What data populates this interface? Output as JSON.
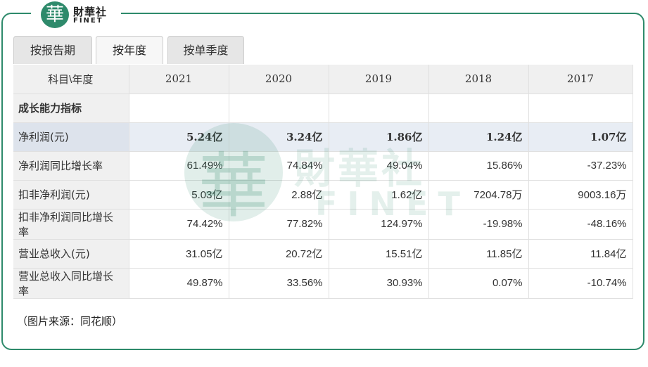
{
  "brand": {
    "mark": "華",
    "name_cn": "財華社",
    "name_en": "FINET"
  },
  "tabs": [
    {
      "label": "按报告期",
      "active": false
    },
    {
      "label": "按年度",
      "active": true
    },
    {
      "label": "按单季度",
      "active": false
    }
  ],
  "table": {
    "header": [
      "科目\\年度",
      "2021",
      "2020",
      "2019",
      "2018",
      "2017"
    ],
    "section_label": "成长能力指标",
    "rows": [
      {
        "label": "净利润(元)",
        "values": [
          "5.24亿",
          "3.24亿",
          "1.86亿",
          "1.24亿",
          "1.07亿"
        ]
      },
      {
        "label": "净利润同比增长率",
        "values": [
          "61.49%",
          "74.84%",
          "49.04%",
          "15.86%",
          "-37.23%"
        ]
      },
      {
        "label": "扣非净利润(元)",
        "values": [
          "5.03亿",
          "2.88亿",
          "1.62亿",
          "7204.78万",
          "9003.16万"
        ]
      },
      {
        "label": "扣非净利润同比增长率",
        "values": [
          "74.42%",
          "77.82%",
          "124.97%",
          "-19.98%",
          "-48.16%"
        ]
      },
      {
        "label": "营业总收入(元)",
        "values": [
          "31.05亿",
          "20.72亿",
          "15.51亿",
          "11.85亿",
          "11.84亿"
        ]
      },
      {
        "label": "营业总收入同比增长率",
        "values": [
          "49.87%",
          "33.56%",
          "30.93%",
          "0.07%",
          "-10.74%"
        ]
      }
    ]
  },
  "source_note": "（图片来源：同花顺）",
  "colors": {
    "brand_green": "#2e8a6b",
    "highlight_row": "#e8edf4",
    "header_bg": "#f0f0f0"
  }
}
